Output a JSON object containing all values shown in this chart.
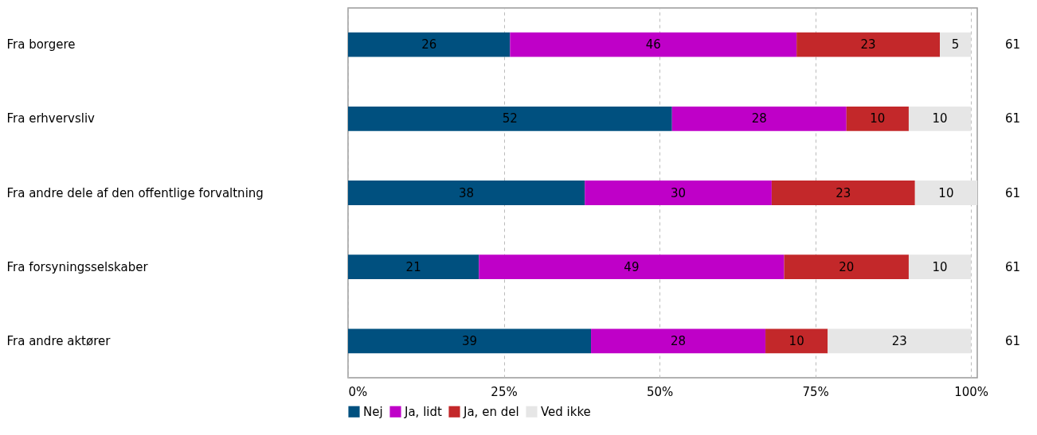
{
  "chart_data": {
    "type": "bar",
    "orientation": "horizontal",
    "stacked": true,
    "categories": [
      "Fra borgere",
      "Fra erhvervsliv",
      "Fra andre dele af den offentlige forvaltning",
      "Fra forsyningsselskaber",
      "Fra andre aktører"
    ],
    "series": [
      {
        "name": "Nej",
        "color": "#00507f",
        "values": [
          26,
          52,
          38,
          21,
          39
        ]
      },
      {
        "name": "Ja, lidt",
        "color": "#bf00c8",
        "values": [
          46,
          28,
          30,
          49,
          28
        ]
      },
      {
        "name": "Ja, en del",
        "color": "#c3282a",
        "values": [
          23,
          10,
          23,
          20,
          10
        ]
      },
      {
        "name": "Ved ikke",
        "color": "#e6e6e6",
        "values": [
          5,
          10,
          10,
          10,
          23
        ]
      }
    ],
    "xlim": [
      0,
      101
    ],
    "xticks": [
      {
        "value": 0,
        "label": "0%"
      },
      {
        "value": 25,
        "label": "25%"
      },
      {
        "value": 50,
        "label": "50%"
      },
      {
        "value": 75,
        "label": "75%"
      },
      {
        "value": 100,
        "label": "100%"
      }
    ],
    "grid": "x",
    "legend": "bottom",
    "data_labels": true,
    "annotations": [
      "61",
      "61",
      "61",
      "61",
      "61"
    ]
  }
}
